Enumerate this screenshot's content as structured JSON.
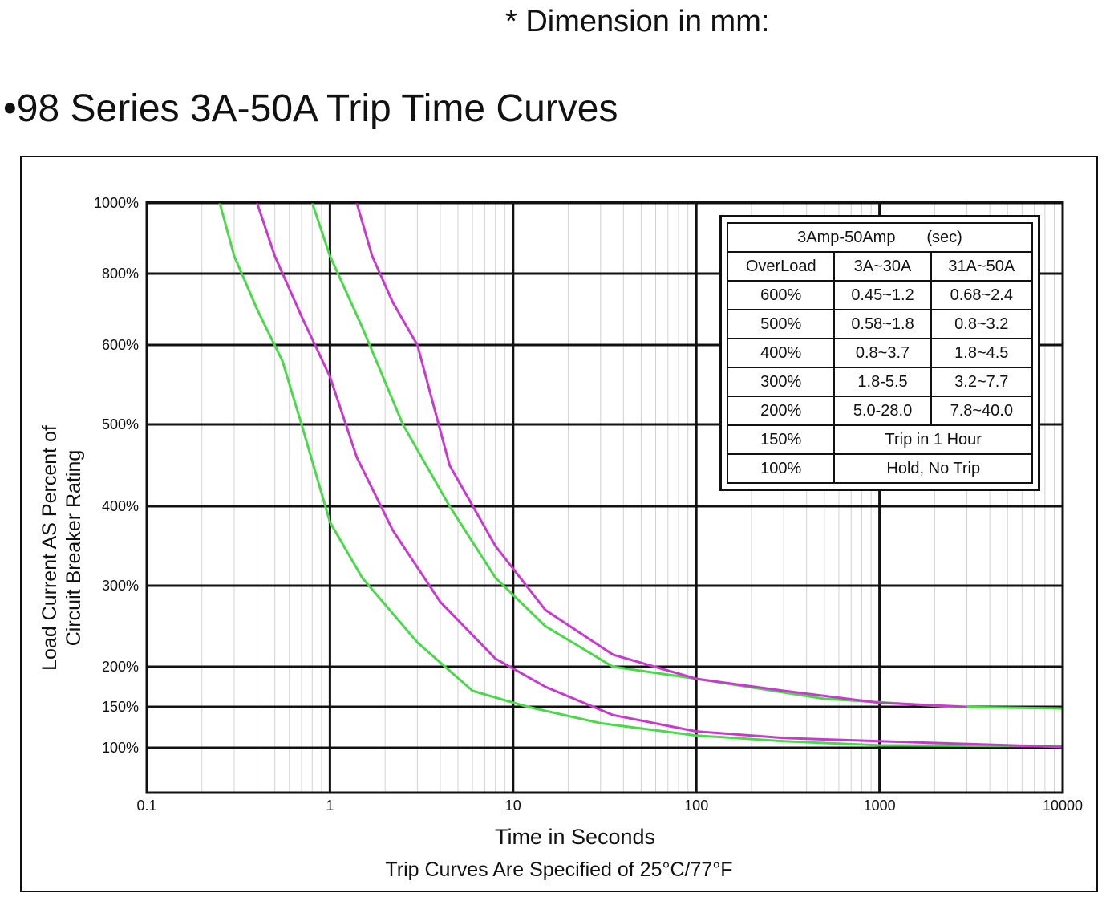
{
  "header_note": "* Dimension in mm:",
  "page_title": "•98 Series 3A-50A Trip Time Curves",
  "chart_data": {
    "type": "line",
    "title": "98 Series 3A-50A Trip Time Curves",
    "xlabel": "Time in Seconds",
    "note": "Trip Curves Are Specified of 25°C/77°F",
    "ylabel_line1": "Load Current AS Percent of",
    "ylabel_line2": "Circuit Breaker Rating",
    "x_scale": "log",
    "xlim": [
      0.1,
      10000
    ],
    "x_ticks": [
      0.1,
      1,
      10,
      100,
      1000,
      10000
    ],
    "x_tick_labels": [
      "0.1",
      "1",
      "10",
      "100",
      "1000",
      "10000"
    ],
    "y_ticks": [
      100,
      150,
      200,
      300,
      400,
      500,
      600,
      800,
      1000
    ],
    "y_tick_labels": [
      "100%",
      "150%",
      "200%",
      "300%",
      "400%",
      "500%",
      "600%",
      "800%",
      "1000%"
    ],
    "grid": true,
    "series": [
      {
        "name": "3A~30A",
        "color": "#4bd84b",
        "curves": [
          [
            [
              0.25,
              1000
            ],
            [
              0.3,
              850
            ],
            [
              0.4,
              700
            ],
            [
              0.55,
              580
            ],
            [
              0.7,
              500
            ],
            [
              1.0,
              380
            ],
            [
              1.5,
              310
            ],
            [
              3,
              230
            ],
            [
              6,
              170
            ],
            [
              12,
              150
            ],
            [
              30,
              130
            ],
            [
              100,
              115
            ],
            [
              300,
              108
            ],
            [
              1000,
              103
            ],
            [
              10000,
              102
            ]
          ],
          [
            [
              0.8,
              1000
            ],
            [
              1.0,
              850
            ],
            [
              1.5,
              650
            ],
            [
              2.5,
              500
            ],
            [
              4.5,
              400
            ],
            [
              8,
              310
            ],
            [
              15,
              250
            ],
            [
              35,
              200
            ],
            [
              100,
              185
            ],
            [
              500,
              160
            ],
            [
              2500,
              150
            ],
            [
              10000,
              148
            ]
          ]
        ]
      },
      {
        "name": "31A~50A",
        "color": "#c63bcc",
        "curves": [
          [
            [
              0.4,
              1000
            ],
            [
              0.5,
              850
            ],
            [
              0.7,
              680
            ],
            [
              1.0,
              560
            ],
            [
              1.4,
              460
            ],
            [
              2.2,
              370
            ],
            [
              4,
              280
            ],
            [
              8,
              210
            ],
            [
              15,
              175
            ],
            [
              35,
              140
            ],
            [
              100,
              120
            ],
            [
              300,
              112
            ],
            [
              1000,
              108
            ],
            [
              10000,
              101
            ]
          ],
          [
            [
              1.4,
              1000
            ],
            [
              1.7,
              850
            ],
            [
              2.2,
              720
            ],
            [
              3,
              600
            ],
            [
              4.5,
              450
            ],
            [
              8,
              350
            ],
            [
              15,
              270
            ],
            [
              35,
              215
            ],
            [
              100,
              185
            ],
            [
              300,
              170
            ],
            [
              1000,
              155
            ],
            [
              3000,
              150
            ]
          ]
        ]
      }
    ]
  },
  "legend_table": {
    "header": "3Amp-50Amp",
    "header_unit": "(sec)",
    "columns": [
      "OverLoad",
      "3A~30A",
      "31A~50A"
    ],
    "rows": [
      [
        "600%",
        "0.45~1.2",
        "0.68~2.4"
      ],
      [
        "500%",
        "0.58~1.8",
        "0.8~3.2"
      ],
      [
        "400%",
        "0.8~3.7",
        "1.8~4.5"
      ],
      [
        "300%",
        "1.8-5.5",
        "3.2~7.7"
      ],
      [
        "200%",
        "5.0-28.0",
        "7.8~40.0"
      ]
    ],
    "merged_rows": [
      [
        "150%",
        "Trip in 1 Hour"
      ],
      [
        "100%",
        "Hold, No Trip"
      ]
    ]
  }
}
